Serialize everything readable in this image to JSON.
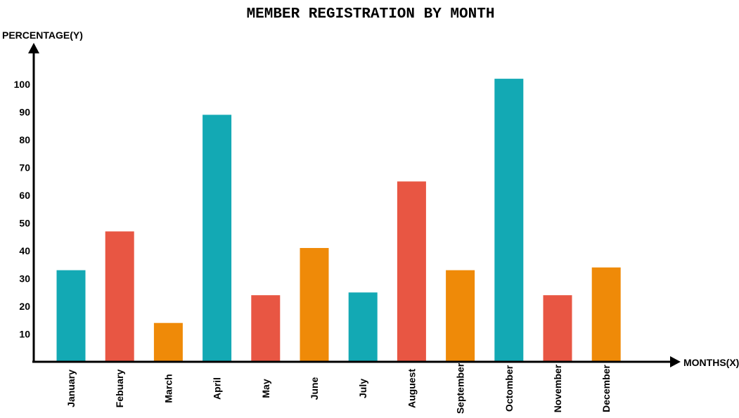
{
  "chart_data": {
    "type": "bar",
    "title": "MEMBER REGISTRATION BY MONTH",
    "xlabel": "MONTHS(X)",
    "ylabel": "PERCENTAGE(Y)",
    "categories": [
      "January",
      "Febuary",
      "March",
      "April",
      "May",
      "June",
      "July",
      "Auguest",
      "September",
      "Octomber",
      "November",
      "December"
    ],
    "values": [
      33,
      47,
      14,
      89,
      24,
      41,
      25,
      65,
      33,
      102,
      24,
      34
    ],
    "bar_colors": [
      "#13a9b4",
      "#e85643",
      "#ef8a08",
      "#13a9b4",
      "#e85643",
      "#ef8a08",
      "#13a9b4",
      "#e85643",
      "#ef8a08",
      "#13a9b4",
      "#e85643",
      "#ef8a08"
    ],
    "yticks": [
      10,
      20,
      30,
      40,
      50,
      60,
      70,
      80,
      90,
      100
    ],
    "ylim": [
      0,
      100
    ],
    "grid": false,
    "legend": "none"
  }
}
